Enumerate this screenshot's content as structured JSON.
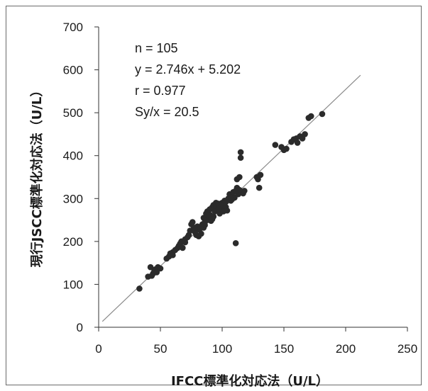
{
  "chart_data": {
    "type": "scatter",
    "xlabel": "IFCC標準化対応法（U/L）",
    "ylabel": "現行JSCC標準化対応法（U/L）",
    "xlim": [
      0,
      250
    ],
    "ylim": [
      0,
      700
    ],
    "x_ticks": [
      "0",
      "50",
      "100",
      "150",
      "200",
      "250"
    ],
    "y_ticks": [
      "0",
      "100",
      "200",
      "300",
      "400",
      "500",
      "600",
      "700"
    ],
    "grid": false,
    "stats": [
      "n = 105",
      "y = 2.746x + 5.202",
      "r = 0.977",
      "Sy/x = 20.5"
    ],
    "regression": {
      "slope": 2.746,
      "intercept": 5.202,
      "x_range": [
        3,
        212
      ]
    },
    "colors": {
      "points": "#2b2b2b",
      "line": "#8a8a8a",
      "axes": "#333333"
    },
    "points": [
      [
        33,
        90
      ],
      [
        40,
        118
      ],
      [
        42,
        140
      ],
      [
        43,
        120
      ],
      [
        44,
        125
      ],
      [
        45,
        130
      ],
      [
        46,
        135
      ],
      [
        48,
        140
      ],
      [
        50,
        137
      ],
      [
        47,
        128
      ],
      [
        55,
        160
      ],
      [
        57,
        165
      ],
      [
        58,
        172
      ],
      [
        60,
        175
      ],
      [
        60,
        168
      ],
      [
        62,
        180
      ],
      [
        64,
        185
      ],
      [
        65,
        190
      ],
      [
        66,
        195
      ],
      [
        67,
        200
      ],
      [
        68,
        185
      ],
      [
        70,
        205
      ],
      [
        70,
        198
      ],
      [
        72,
        210
      ],
      [
        73,
        215
      ],
      [
        74,
        225
      ],
      [
        75,
        240
      ],
      [
        76,
        245
      ],
      [
        77,
        230
      ],
      [
        78,
        222
      ],
      [
        79,
        215
      ],
      [
        80,
        235
      ],
      [
        80,
        228
      ],
      [
        81,
        212
      ],
      [
        82,
        230
      ],
      [
        83,
        218
      ],
      [
        84,
        240
      ],
      [
        85,
        232
      ],
      [
        85,
        255
      ],
      [
        86,
        245
      ],
      [
        87,
        265
      ],
      [
        88,
        270
      ],
      [
        88,
        250
      ],
      [
        89,
        260
      ],
      [
        90,
        275
      ],
      [
        90,
        262
      ],
      [
        91,
        248
      ],
      [
        92,
        280
      ],
      [
        93,
        285
      ],
      [
        93,
        258
      ],
      [
        94,
        270
      ],
      [
        95,
        282
      ],
      [
        95,
        290
      ],
      [
        96,
        272
      ],
      [
        97,
        288
      ],
      [
        98,
        265
      ],
      [
        99,
        278
      ],
      [
        100,
        290
      ],
      [
        100,
        283
      ],
      [
        101,
        270
      ],
      [
        102,
        295
      ],
      [
        103,
        280
      ],
      [
        104,
        272
      ],
      [
        105,
        300
      ],
      [
        106,
        310
      ],
      [
        107,
        295
      ],
      [
        108,
        305
      ],
      [
        108,
        298
      ],
      [
        109,
        315
      ],
      [
        110,
        302
      ],
      [
        111,
        196
      ],
      [
        112,
        325
      ],
      [
        112,
        345
      ],
      [
        113,
        310
      ],
      [
        114,
        350
      ],
      [
        114,
        320
      ],
      [
        115,
        395
      ],
      [
        115,
        408
      ],
      [
        117,
        312
      ],
      [
        118,
        318
      ],
      [
        128,
        350
      ],
      [
        129,
        345
      ],
      [
        130,
        325
      ],
      [
        131,
        355
      ],
      [
        143,
        425
      ],
      [
        148,
        420
      ],
      [
        150,
        413
      ],
      [
        152,
        416
      ],
      [
        156,
        432
      ],
      [
        158,
        438
      ],
      [
        160,
        440
      ],
      [
        161,
        430
      ],
      [
        163,
        445
      ],
      [
        165,
        440
      ],
      [
        167,
        450
      ],
      [
        170,
        488
      ],
      [
        172,
        492
      ],
      [
        181,
        497
      ],
      [
        78,
        232
      ],
      [
        86,
        238
      ],
      [
        92,
        252
      ],
      [
        97,
        276
      ],
      [
        103,
        292
      ],
      [
        107,
        302
      ],
      [
        111,
        318
      ]
    ]
  }
}
